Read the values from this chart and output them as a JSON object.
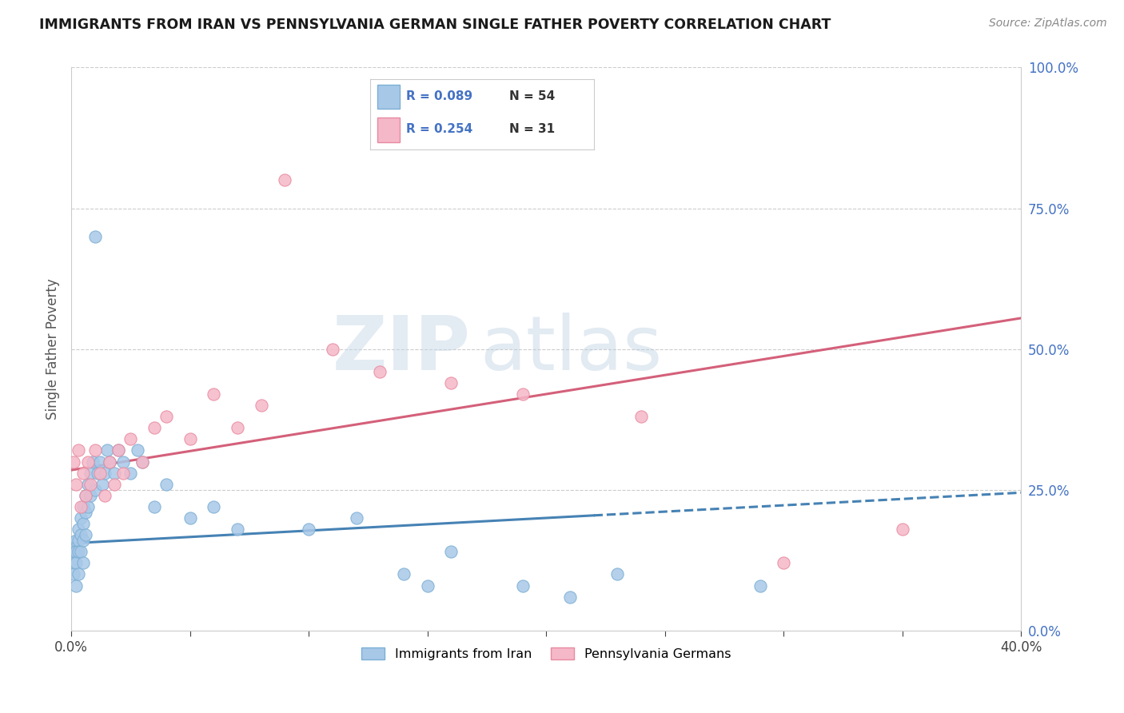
{
  "title": "IMMIGRANTS FROM IRAN VS PENNSYLVANIA GERMAN SINGLE FATHER POVERTY CORRELATION CHART",
  "source": "Source: ZipAtlas.com",
  "ylabel": "Single Father Poverty",
  "right_yticks": [
    0.0,
    0.25,
    0.5,
    0.75,
    1.0
  ],
  "right_yticklabels": [
    "0.0%",
    "25.0%",
    "50.0%",
    "75.0%",
    "100.0%"
  ],
  "xlim": [
    0.0,
    0.4
  ],
  "ylim": [
    0.0,
    1.0
  ],
  "series1_name": "Immigrants from Iran",
  "series1_color": "#a8c8e8",
  "series1_edge_color": "#7bafd4",
  "series1_line_color": "#4682b4",
  "series1_R": 0.089,
  "series1_N": 54,
  "series2_name": "Pennsylvania Germans",
  "series2_color": "#f5b8c8",
  "series2_edge_color": "#e88aa0",
  "series2_line_color": "#d4607a",
  "series2_R": 0.254,
  "series2_N": 31,
  "watermark_zip": "ZIP",
  "watermark_atlas": "atlas",
  "blue_scatter_x": [
    0.001,
    0.001,
    0.001,
    0.002,
    0.002,
    0.002,
    0.002,
    0.003,
    0.003,
    0.003,
    0.003,
    0.004,
    0.004,
    0.004,
    0.005,
    0.005,
    0.005,
    0.005,
    0.006,
    0.006,
    0.006,
    0.007,
    0.007,
    0.008,
    0.008,
    0.009,
    0.01,
    0.01,
    0.011,
    0.012,
    0.013,
    0.014,
    0.015,
    0.016,
    0.018,
    0.02,
    0.022,
    0.025,
    0.028,
    0.03,
    0.035,
    0.04,
    0.05,
    0.06,
    0.07,
    0.1,
    0.12,
    0.14,
    0.15,
    0.16,
    0.19,
    0.21,
    0.23,
    0.29
  ],
  "blue_scatter_y": [
    0.14,
    0.12,
    0.1,
    0.16,
    0.14,
    0.12,
    0.08,
    0.18,
    0.16,
    0.14,
    0.1,
    0.2,
    0.17,
    0.14,
    0.22,
    0.19,
    0.16,
    0.12,
    0.24,
    0.21,
    0.17,
    0.26,
    0.22,
    0.28,
    0.24,
    0.3,
    0.7,
    0.25,
    0.28,
    0.3,
    0.26,
    0.28,
    0.32,
    0.3,
    0.28,
    0.32,
    0.3,
    0.28,
    0.32,
    0.3,
    0.22,
    0.26,
    0.2,
    0.22,
    0.18,
    0.18,
    0.2,
    0.1,
    0.08,
    0.14,
    0.08,
    0.06,
    0.1,
    0.08
  ],
  "pink_scatter_x": [
    0.001,
    0.002,
    0.003,
    0.004,
    0.005,
    0.006,
    0.007,
    0.008,
    0.01,
    0.012,
    0.014,
    0.016,
    0.018,
    0.02,
    0.022,
    0.025,
    0.03,
    0.035,
    0.04,
    0.05,
    0.06,
    0.07,
    0.08,
    0.09,
    0.11,
    0.13,
    0.16,
    0.19,
    0.24,
    0.3,
    0.35
  ],
  "pink_scatter_y": [
    0.3,
    0.26,
    0.32,
    0.22,
    0.28,
    0.24,
    0.3,
    0.26,
    0.32,
    0.28,
    0.24,
    0.3,
    0.26,
    0.32,
    0.28,
    0.34,
    0.3,
    0.36,
    0.38,
    0.34,
    0.42,
    0.36,
    0.4,
    0.8,
    0.5,
    0.46,
    0.44,
    0.42,
    0.38,
    0.12,
    0.18
  ],
  "blue_trend_x0": 0.0,
  "blue_trend_y0": 0.155,
  "blue_trend_x1": 0.4,
  "blue_trend_y1": 0.245,
  "pink_trend_x0": 0.0,
  "pink_trend_y0": 0.285,
  "pink_trend_x1": 0.4,
  "pink_trend_y1": 0.555
}
